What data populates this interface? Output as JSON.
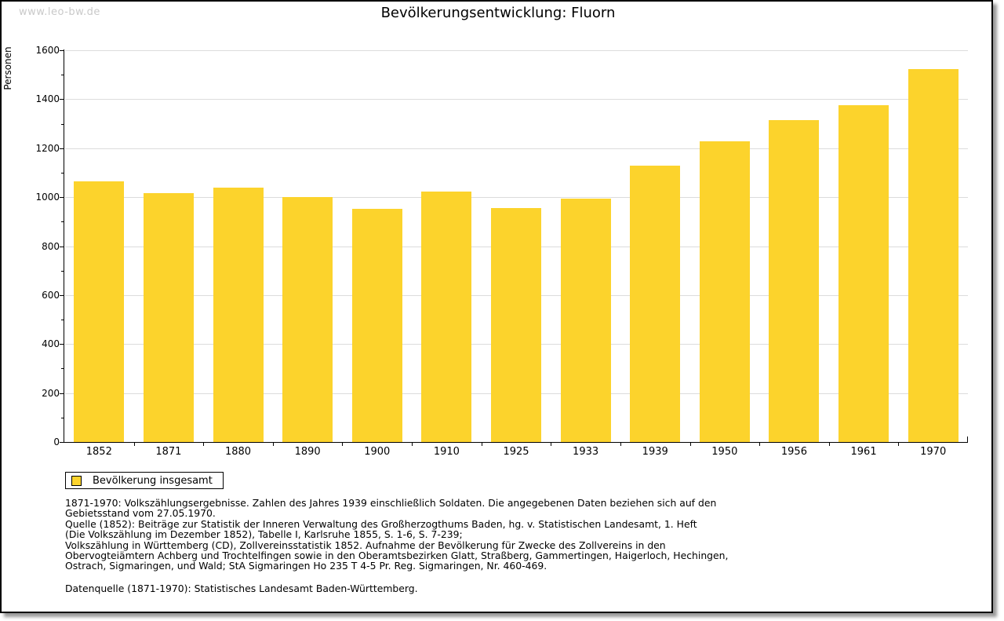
{
  "watermark": "www.leo-bw.de",
  "header": {
    "title": "Bevölkerungsentwicklung: Fluorn"
  },
  "chart_data": {
    "type": "bar",
    "title": "Bevölkerungsentwicklung: Fluorn",
    "xlabel": "",
    "ylabel": "Personen",
    "categories": [
      "1852",
      "1871",
      "1880",
      "1890",
      "1900",
      "1910",
      "1925",
      "1933",
      "1939",
      "1950",
      "1956",
      "1961",
      "1970"
    ],
    "series": [
      {
        "name": "Bevölkerung insgesamt",
        "values": [
          1065,
          1015,
          1038,
          1000,
          953,
          1022,
          955,
          995,
          1128,
          1227,
          1315,
          1374,
          1523
        ]
      }
    ],
    "ylim": [
      0,
      1600
    ],
    "ytick_interval": 200,
    "yminor_tick_interval": 100,
    "yticks": [
      0,
      200,
      400,
      600,
      800,
      1000,
      1200,
      1400,
      1600
    ],
    "grid": true,
    "legend_position": "bottom-left",
    "bar_color": "#FCD32C"
  },
  "legend": {
    "label": "Bevölkerung insgesamt",
    "swatch_color": "#FCD32C"
  },
  "footnotes": [
    "1871-1970: Volkszählungsergebnisse. Zahlen des Jahres 1939 einschließlich Soldaten. Die angegebenen Daten beziehen sich auf den",
    "Gebietsstand vom 27.05.1970.",
    "Quelle (1852): Beiträge zur Statistik der Inneren Verwaltung des Großherzogthums Baden, hg. v. Statistischen Landesamt, 1. Heft",
    "(Die Volkszählung im Dezember 1852), Tabelle I, Karlsruhe 1855, S. 1-6, S. 7-239;",
    "Volkszählung in Württemberg (CD), Zollvereinsstatistik 1852. Aufnahme der Bevölkerung für Zwecke des Zollvereins in den",
    "Obervogteiämtern Achberg und Trochtelfingen sowie in den Oberamtsbezirken Glatt, Straßberg, Gammertingen, Haigerloch, Hechingen,",
    "Ostrach, Sigmaringen, und Wald; StA Sigmaringen Ho 235 T 4-5 Pr. Reg. Sigmaringen, Nr. 460-469."
  ],
  "source_line": "Datenquelle (1871-1970): Statistisches Landesamt Baden-Württemberg.",
  "colors": {
    "bar": "#FCD32C",
    "grid": "#DCDCDC",
    "axis": "#000000",
    "watermark": "#C9C9C9",
    "frame_shadow": "#9A9A9A",
    "background": "#FFFFFF"
  }
}
